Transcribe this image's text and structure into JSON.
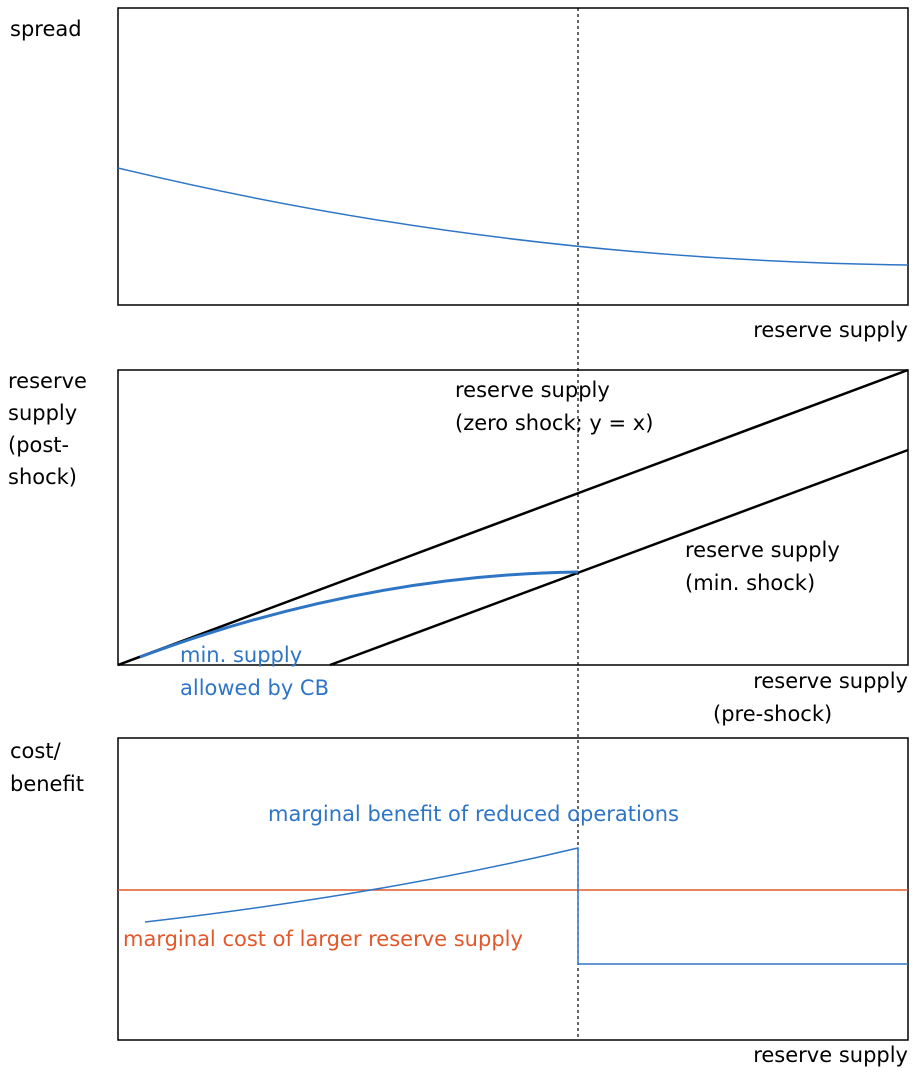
{
  "panels": [
    {
      "y_label": [
        "spread"
      ],
      "x_label": [
        "reserve supply"
      ]
    },
    {
      "y_label": [
        "reserve",
        "supply",
        "(post-",
        "shock)"
      ],
      "x_label": [
        "reserve supply",
        "(pre-shock)"
      ],
      "annotations": [
        [
          "reserve supply",
          "(zero shock; y = x)"
        ],
        [
          "reserve supply",
          "(min. shock)"
        ],
        [
          "min. supply",
          "allowed by CB"
        ]
      ]
    },
    {
      "y_label": [
        "cost/",
        "benefit"
      ],
      "x_label": [
        "reserve supply"
      ],
      "annotations": [
        [
          "marginal benefit of reduced operations"
        ],
        [
          "marginal cost of larger reserve supply"
        ]
      ]
    }
  ]
}
